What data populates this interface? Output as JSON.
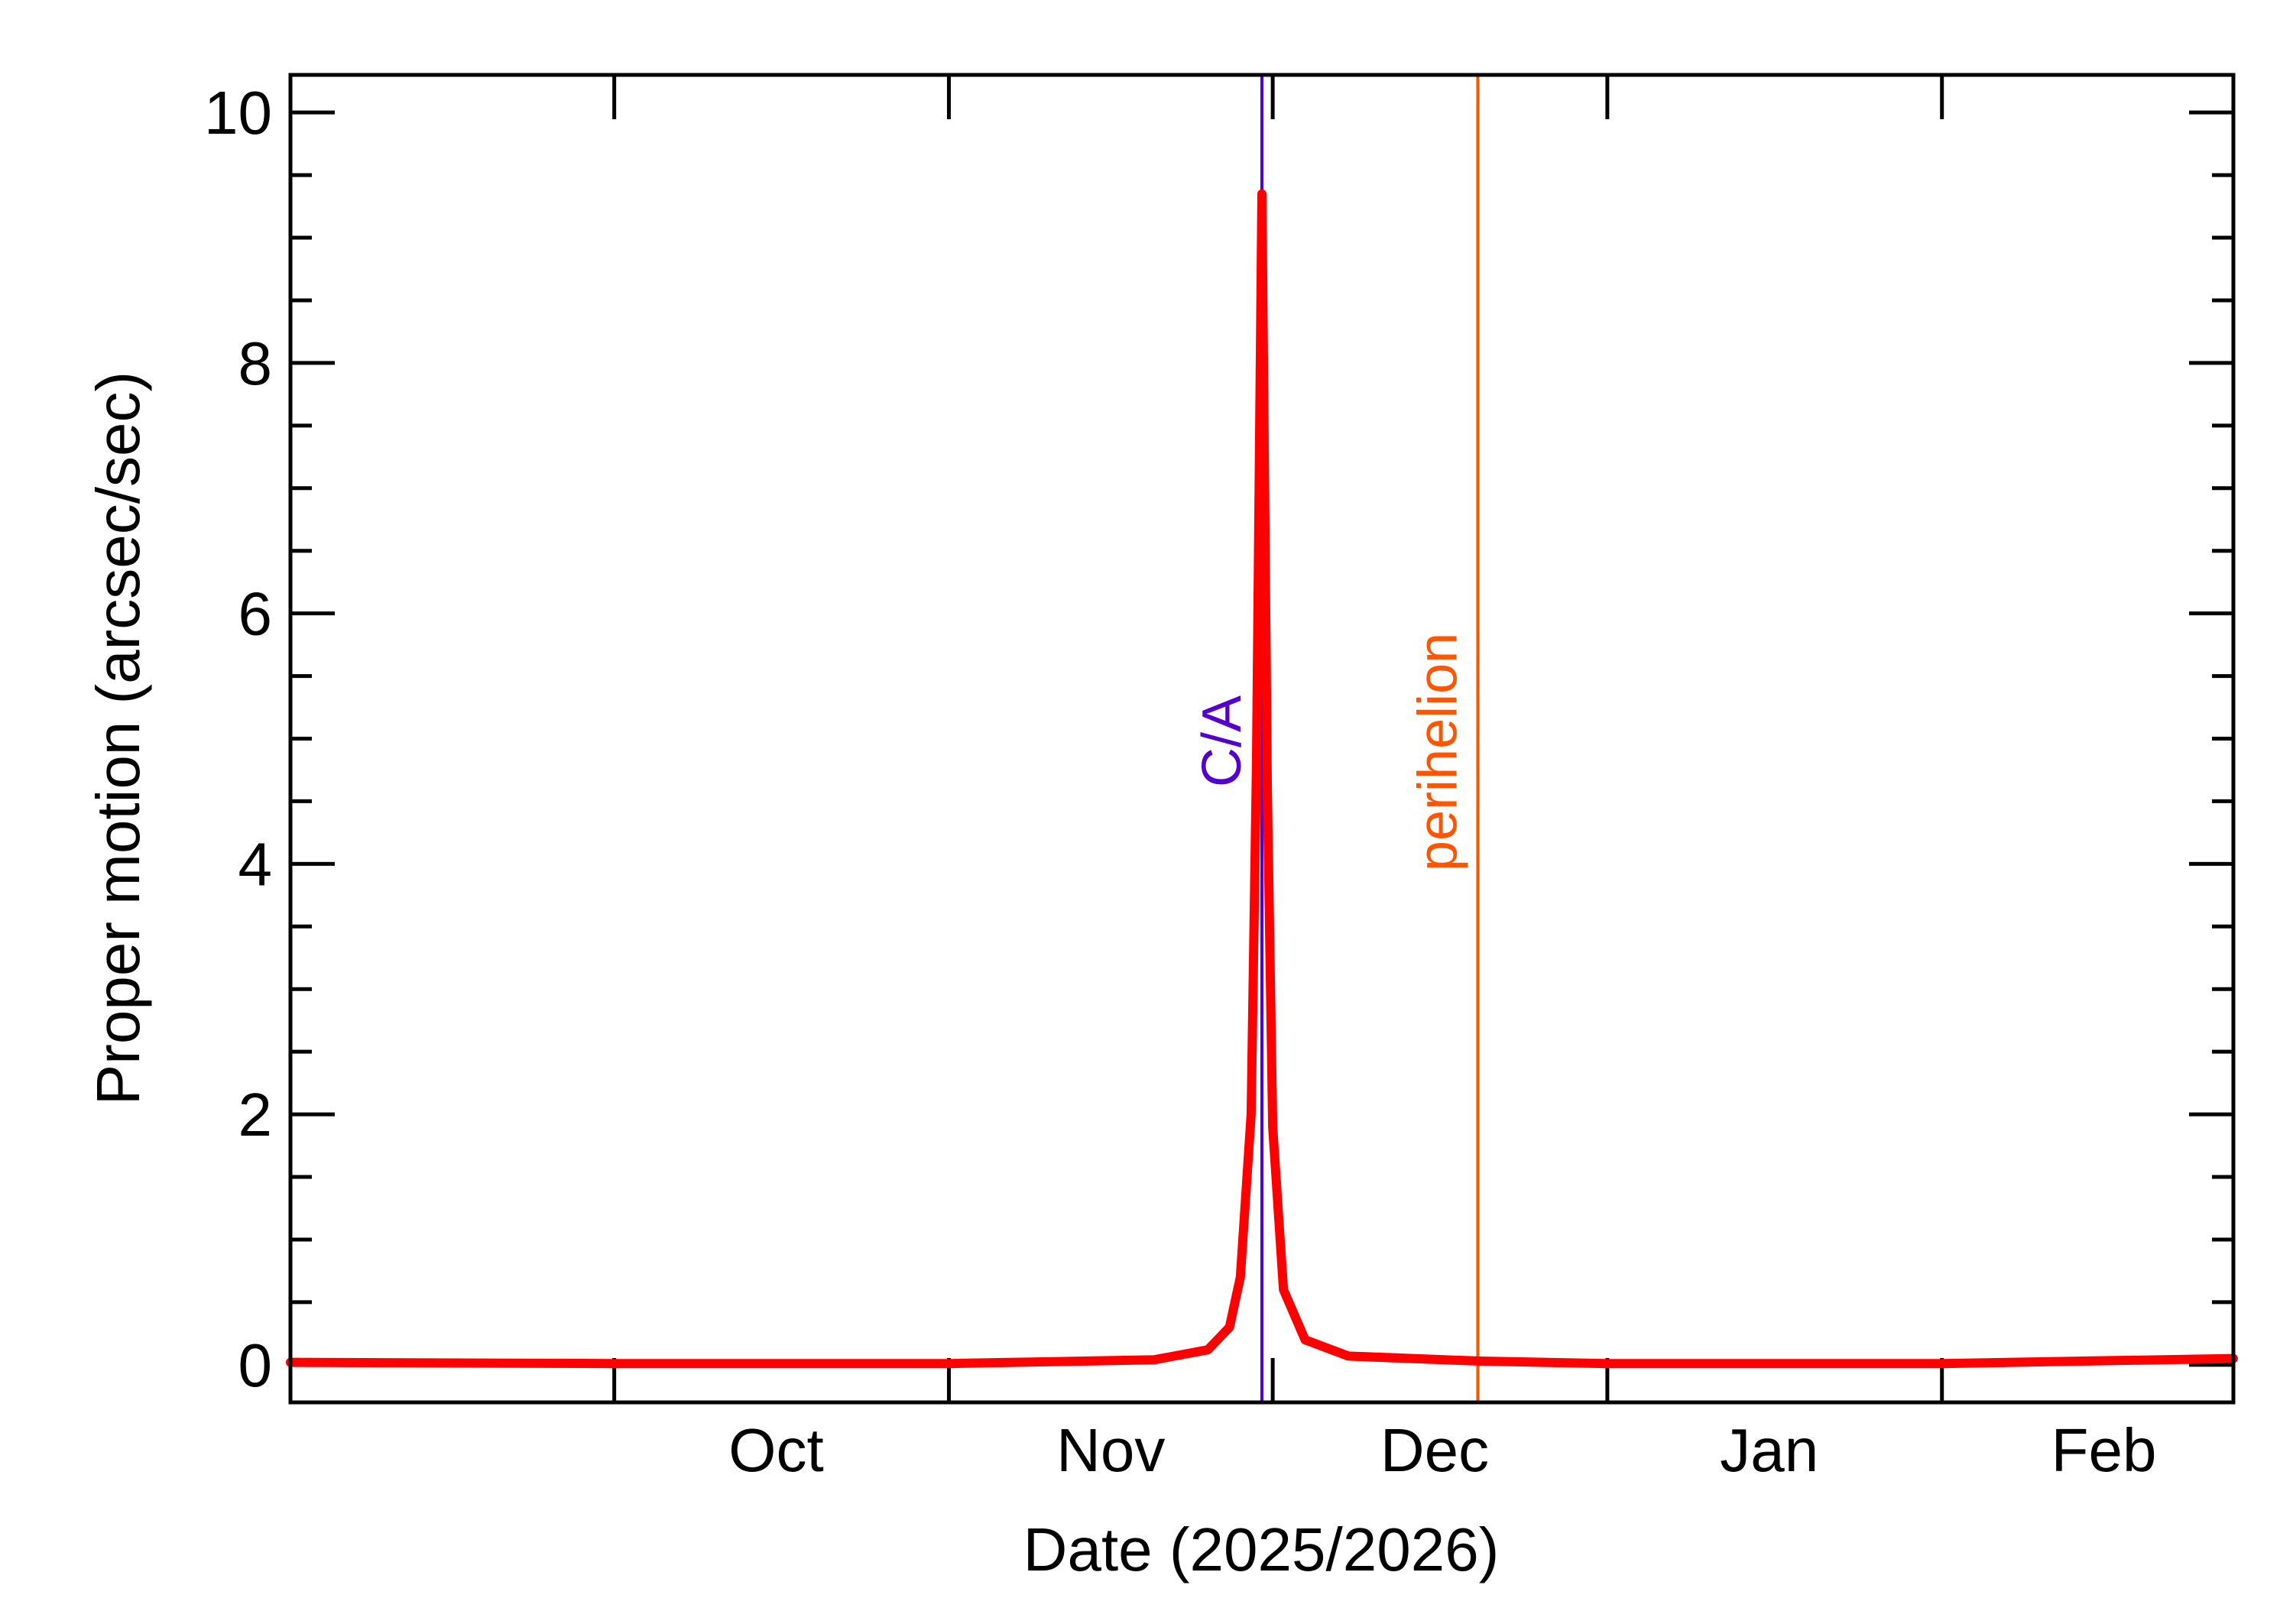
{
  "chart_data": {
    "type": "line",
    "title": "",
    "xlabel": "Date (2025/2026)",
    "ylabel": "Proper motion (arcsec/sec)",
    "x_range": [
      "2025-09-01",
      "2026-02-28"
    ],
    "ylim": [
      -0.3,
      10.3
    ],
    "x_ticks": [
      {
        "date": "2025-10-01",
        "label": "Oct"
      },
      {
        "date": "2025-11-01",
        "label": "Nov"
      },
      {
        "date": "2025-12-01",
        "label": "Dec"
      },
      {
        "date": "2026-01-01",
        "label": "Jan"
      },
      {
        "date": "2026-02-01",
        "label": "Feb"
      }
    ],
    "y_ticks": [
      0,
      2,
      4,
      6,
      8,
      10
    ],
    "y_tick_labels": [
      "0",
      "2",
      "4",
      "6",
      "8",
      "10"
    ],
    "grid": false,
    "series": [
      {
        "color": "#ff0000",
        "x": [
          "2025-09-01",
          "2025-10-01",
          "2025-11-01",
          "2025-11-20",
          "2025-11-25",
          "2025-11-27",
          "2025-11-28",
          "2025-11-29",
          "2025-11-29T12:00",
          "2025-11-30",
          "2025-11-30T12:00",
          "2025-12-01",
          "2025-12-02",
          "2025-12-04",
          "2025-12-08",
          "2025-12-20",
          "2026-01-01",
          "2026-02-01",
          "2026-02-28"
        ],
        "y": [
          0.02,
          0.01,
          0.01,
          0.04,
          0.12,
          0.3,
          0.7,
          2.0,
          4.8,
          9.35,
          4.6,
          1.9,
          0.6,
          0.2,
          0.07,
          0.03,
          0.01,
          0.01,
          0.05
        ]
      }
    ],
    "annotations": [
      {
        "label": "C/A",
        "date": "2025-11-30",
        "color": "#5500cc"
      },
      {
        "label": "perihelion",
        "date": "2025-12-20",
        "color": "#ff5500"
      }
    ]
  }
}
